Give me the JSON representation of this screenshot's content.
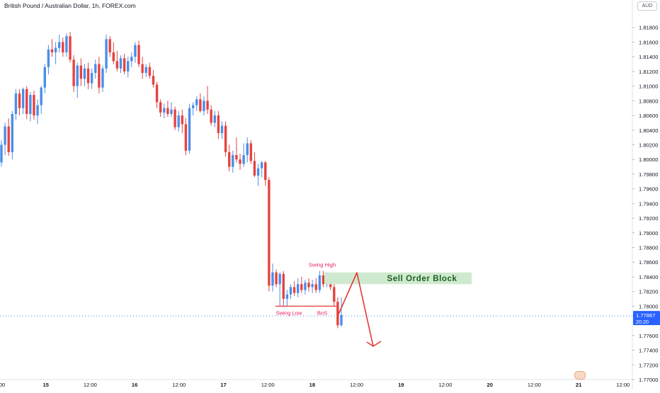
{
  "chart_title": "British Pound / Australian Dollar, 1h, FOREX.com",
  "currency_button": "AUD",
  "price_tag": {
    "value": "1.77867",
    "countdown": "20:20"
  },
  "colors": {
    "up": "#4b8ee8",
    "down": "#e5433f",
    "zone": "#cfe9cf",
    "zone_text": "#1b5e20",
    "annot": "#e91e63",
    "line": "#e53935"
  },
  "chart_data": {
    "type": "candlestick",
    "title": "British Pound / Australian Dollar, 1h, FOREX.com",
    "ylim": [
      1.77,
      1.82
    ],
    "y_ticks": [
      "1.81800",
      "1.81600",
      "1.81400",
      "1.81200",
      "1.81000",
      "1.80800",
      "1.80600",
      "1.80400",
      "1.80200",
      "1.80000",
      "1.79800",
      "1.79600",
      "1.79400",
      "1.79200",
      "1.79000",
      "1.78800",
      "1.78600",
      "1.78400",
      "1.78200",
      "1.78000",
      "1.77600",
      "1.77400",
      "1.77200",
      "1.77000"
    ],
    "x_ticks": [
      ":00",
      "15",
      "12:00",
      "16",
      "12:00",
      "17",
      "12:00",
      "18",
      "12:00",
      "19",
      "12:00",
      "20",
      "12:00",
      "21",
      "12:00"
    ],
    "candles": [
      [
        1.7996,
        1.8026,
        1.799,
        1.802
      ],
      [
        1.802,
        1.805,
        1.8006,
        1.8045
      ],
      [
        1.8045,
        1.8056,
        1.8005,
        1.801
      ],
      [
        1.801,
        1.8066,
        1.8,
        1.8062
      ],
      [
        1.8062,
        1.8096,
        1.8054,
        1.809
      ],
      [
        1.809,
        1.8096,
        1.806,
        1.807
      ],
      [
        1.807,
        1.8098,
        1.8062,
        1.8096
      ],
      [
        1.8096,
        1.81,
        1.8055,
        1.8062
      ],
      [
        1.8062,
        1.8092,
        1.8052,
        1.8088
      ],
      [
        1.8088,
        1.8094,
        1.8054,
        1.806
      ],
      [
        1.806,
        1.8082,
        1.8048,
        1.8074
      ],
      [
        1.8074,
        1.81,
        1.8062,
        1.8098
      ],
      [
        1.8098,
        1.813,
        1.809,
        1.8126
      ],
      [
        1.8126,
        1.8156,
        1.8116,
        1.815
      ],
      [
        1.815,
        1.8164,
        1.814,
        1.8146
      ],
      [
        1.8146,
        1.816,
        1.813,
        1.8152
      ],
      [
        1.8152,
        1.817,
        1.8146,
        1.816
      ],
      [
        1.816,
        1.8166,
        1.814,
        1.8146
      ],
      [
        1.8146,
        1.8172,
        1.814,
        1.8168
      ],
      [
        1.8168,
        1.8174,
        1.8132,
        1.8136
      ],
      [
        1.8136,
        1.8142,
        1.8092,
        1.81
      ],
      [
        1.81,
        1.8132,
        1.8084,
        1.8128
      ],
      [
        1.8128,
        1.8138,
        1.81,
        1.811
      ],
      [
        1.811,
        1.813,
        1.81,
        1.8124
      ],
      [
        1.8124,
        1.8132,
        1.8096,
        1.8104
      ],
      [
        1.8104,
        1.8124,
        1.8096,
        1.8118
      ],
      [
        1.8118,
        1.8136,
        1.811,
        1.813
      ],
      [
        1.813,
        1.814,
        1.809,
        1.8098
      ],
      [
        1.8098,
        1.8128,
        1.8092,
        1.8124
      ],
      [
        1.8124,
        1.817,
        1.8118,
        1.8164
      ],
      [
        1.8164,
        1.8168,
        1.814,
        1.8146
      ],
      [
        1.8146,
        1.816,
        1.813,
        1.8134
      ],
      [
        1.8134,
        1.8148,
        1.812,
        1.8124
      ],
      [
        1.8124,
        1.8142,
        1.8118,
        1.8138
      ],
      [
        1.8138,
        1.8144,
        1.8116,
        1.812
      ],
      [
        1.812,
        1.814,
        1.8112,
        1.8134
      ],
      [
        1.8134,
        1.8146,
        1.8126,
        1.814
      ],
      [
        1.814,
        1.816,
        1.8132,
        1.8156
      ],
      [
        1.8156,
        1.8162,
        1.8126,
        1.813
      ],
      [
        1.813,
        1.814,
        1.811,
        1.8118
      ],
      [
        1.8118,
        1.813,
        1.8112,
        1.8126
      ],
      [
        1.8126,
        1.8132,
        1.811,
        1.8114
      ],
      [
        1.8114,
        1.8122,
        1.8098,
        1.8102
      ],
      [
        1.8102,
        1.8106,
        1.807,
        1.8078
      ],
      [
        1.8078,
        1.8082,
        1.8058,
        1.8064
      ],
      [
        1.8064,
        1.8076,
        1.8056,
        1.807
      ],
      [
        1.807,
        1.808,
        1.8058,
        1.8062
      ],
      [
        1.8062,
        1.8078,
        1.8058,
        1.8068
      ],
      [
        1.8068,
        1.8072,
        1.804,
        1.8044
      ],
      [
        1.8044,
        1.8066,
        1.8038,
        1.806
      ],
      [
        1.806,
        1.8068,
        1.8036,
        1.8048
      ],
      [
        1.8048,
        1.8056,
        1.8006,
        1.8012
      ],
      [
        1.8012,
        1.8076,
        1.8008,
        1.807
      ],
      [
        1.807,
        1.8078,
        1.806,
        1.8074
      ],
      [
        1.8074,
        1.8086,
        1.8066,
        1.8082
      ],
      [
        1.8082,
        1.809,
        1.8064,
        1.8066
      ],
      [
        1.8066,
        1.8086,
        1.806,
        1.808
      ],
      [
        1.808,
        1.81,
        1.8062,
        1.8068
      ],
      [
        1.8068,
        1.8074,
        1.8046,
        1.805
      ],
      [
        1.805,
        1.8066,
        1.8044,
        1.806
      ],
      [
        1.806,
        1.8066,
        1.8028,
        1.8036
      ],
      [
        1.8036,
        1.8052,
        1.8028,
        1.8046
      ],
      [
        1.8046,
        1.8052,
        1.8004,
        1.801
      ],
      [
        1.801,
        1.802,
        1.7984,
        1.799
      ],
      [
        1.799,
        1.8012,
        1.7982,
        1.8006
      ],
      [
        1.8006,
        1.803,
        1.7996,
        1.8
      ],
      [
        1.8,
        1.8008,
        1.7986,
        1.7994
      ],
      [
        1.7994,
        1.8022,
        1.799,
        1.8006
      ],
      [
        1.8006,
        1.803,
        1.7996,
        1.8022
      ],
      [
        1.8022,
        1.8026,
        1.7994,
        1.7998
      ],
      [
        1.7998,
        1.801,
        1.7976,
        1.7978
      ],
      [
        1.7978,
        1.7994,
        1.7964,
        1.7988
      ],
      [
        1.7988,
        1.7998,
        1.7976,
        1.7996
      ],
      [
        1.7996,
        1.7998,
        1.7964,
        1.7972
      ],
      [
        1.7972,
        1.7976,
        1.782,
        1.7828
      ],
      [
        1.7828,
        1.7858,
        1.782,
        1.7846
      ],
      [
        1.7846,
        1.785,
        1.7826,
        1.783
      ],
      [
        1.783,
        1.7846,
        1.78,
        1.7844
      ],
      [
        1.7844,
        1.7848,
        1.78,
        1.781
      ],
      [
        1.781,
        1.7822,
        1.78,
        1.7816
      ],
      [
        1.7816,
        1.783,
        1.781,
        1.7826
      ],
      [
        1.7826,
        1.7834,
        1.7814,
        1.7818
      ],
      [
        1.7818,
        1.7838,
        1.7812,
        1.783
      ],
      [
        1.783,
        1.784,
        1.7818,
        1.7822
      ],
      [
        1.7822,
        1.7836,
        1.7816,
        1.7832
      ],
      [
        1.7832,
        1.7838,
        1.782,
        1.7826
      ],
      [
        1.7826,
        1.7836,
        1.7818,
        1.783
      ],
      [
        1.783,
        1.7838,
        1.7818,
        1.7822
      ],
      [
        1.7822,
        1.7848,
        1.7818,
        1.7842
      ],
      [
        1.7842,
        1.7848,
        1.7826,
        1.783
      ],
      [
        1.783,
        1.7846,
        1.7826,
        1.784
      ],
      [
        1.784,
        1.7842,
        1.7822,
        1.7826
      ],
      [
        1.7826,
        1.783,
        1.78,
        1.7806
      ],
      [
        1.7806,
        1.7812,
        1.777,
        1.7774
      ],
      [
        1.7774,
        1.7812,
        1.7772,
        1.7788
      ]
    ],
    "annotations": [
      {
        "text": "Swing High",
        "price": 1.7848
      },
      {
        "text": "Swing Low",
        "price": 1.78
      },
      {
        "text": "BoS",
        "price": 1.78
      },
      {
        "text": "Sell Order Block",
        "from": 1.783,
        "to": 1.7846
      }
    ],
    "current_price": 1.77867
  }
}
